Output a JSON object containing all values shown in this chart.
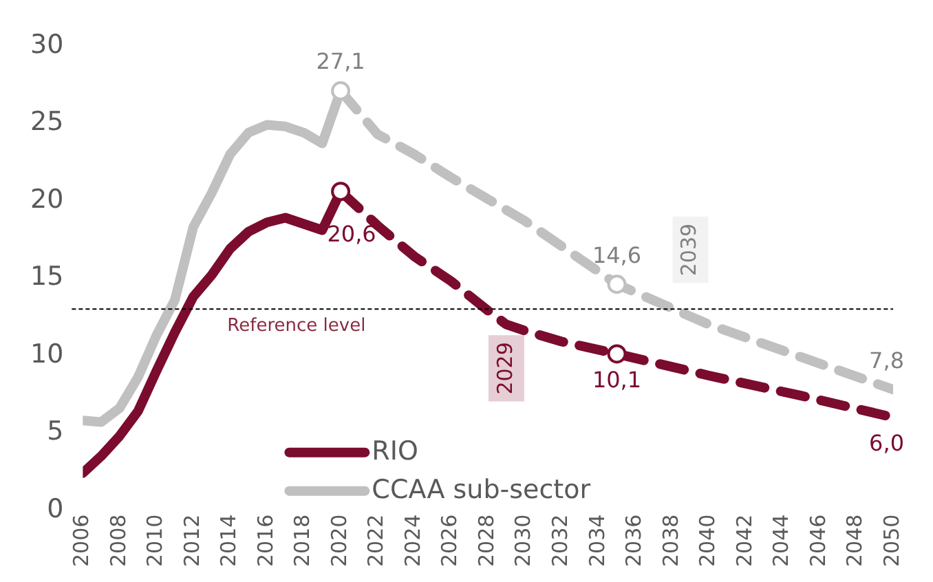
{
  "chart_data": {
    "type": "line",
    "series": [
      {
        "name": "RIO",
        "color": "#7b0c2e",
        "line_style": "solid",
        "x": [
          2006,
          2007,
          2008,
          2009,
          2010,
          2011,
          2012,
          2013,
          2014,
          2015,
          2016,
          2017,
          2018,
          2019,
          2020
        ],
        "values": [
          2.4,
          3.5,
          4.8,
          6.4,
          9.0,
          11.5,
          13.8,
          15.2,
          16.9,
          18.0,
          18.6,
          18.9,
          18.5,
          18.1,
          20.6
        ]
      },
      {
        "name": "CCAA sub-sector",
        "color": "#c0c0c0",
        "line_style": "solid",
        "x": [
          2006,
          2007,
          2008,
          2009,
          2010,
          2011,
          2012,
          2013,
          2014,
          2015,
          2016,
          2017,
          2018,
          2019,
          2020
        ],
        "values": [
          5.8,
          5.7,
          6.6,
          8.6,
          11.3,
          13.6,
          18.3,
          20.5,
          23.0,
          24.4,
          24.9,
          24.8,
          24.4,
          23.7,
          27.1
        ]
      },
      {
        "color": "#7b0c2e",
        "line_style": "dashed",
        "x": [
          2020,
          2022,
          2024,
          2026,
          2028,
          2029,
          2030,
          2032,
          2035,
          2040,
          2045,
          2050
        ],
        "values": [
          20.6,
          18.4,
          16.4,
          14.8,
          12.9,
          12.0,
          11.6,
          10.9,
          10.1,
          8.7,
          7.4,
          6.0
        ],
        "value_labels": [
          "20,6",
          null,
          null,
          null,
          null,
          null,
          null,
          null,
          "10,1",
          null,
          null,
          "6,0"
        ]
      },
      {
        "color": "#c0c0c0",
        "line_style": "dashed",
        "x": [
          2020,
          2022,
          2024,
          2026,
          2028,
          2030,
          2035,
          2040,
          2045,
          2050
        ],
        "values": [
          27.1,
          24.3,
          23.0,
          21.5,
          20.1,
          18.7,
          14.6,
          12.0,
          9.9,
          7.8
        ],
        "value_labels": [
          "27,1",
          null,
          null,
          null,
          null,
          null,
          "14,6",
          null,
          null,
          "7,8"
        ]
      },
      {
        "type": "scatter",
        "marker": "circle",
        "color": "#7b0c2e",
        "x": [
          2020,
          2035
        ],
        "values": [
          20.6,
          10.1
        ]
      },
      {
        "type": "scatter",
        "marker": "circle",
        "color": "#c0c0c0",
        "x": [
          2020,
          2035
        ],
        "values": [
          27.1,
          14.6
        ]
      }
    ],
    "xlim": [
      2006,
      2050
    ],
    "xticks": [
      2006,
      2008,
      2010,
      2012,
      2014,
      2016,
      2018,
      2020,
      2022,
      2024,
      2026,
      2028,
      2030,
      2032,
      2034,
      2036,
      2038,
      2040,
      2042,
      2044,
      2046,
      2048,
      2050
    ],
    "ylim": [
      0,
      30
    ],
    "yticks": [
      0,
      5,
      10,
      15,
      20,
      25,
      30
    ],
    "grid": false,
    "legend": "bottom left",
    "ref_lines": [
      {
        "axis": "y",
        "value": 13,
        "label": "Reference level",
        "color": "#000000",
        "line_style": "dashed"
      }
    ],
    "annotations": [
      {
        "text": "2029",
        "x": 2029,
        "y": 13
      },
      {
        "text": "2039",
        "x": 2039,
        "y": 13
      }
    ]
  }
}
